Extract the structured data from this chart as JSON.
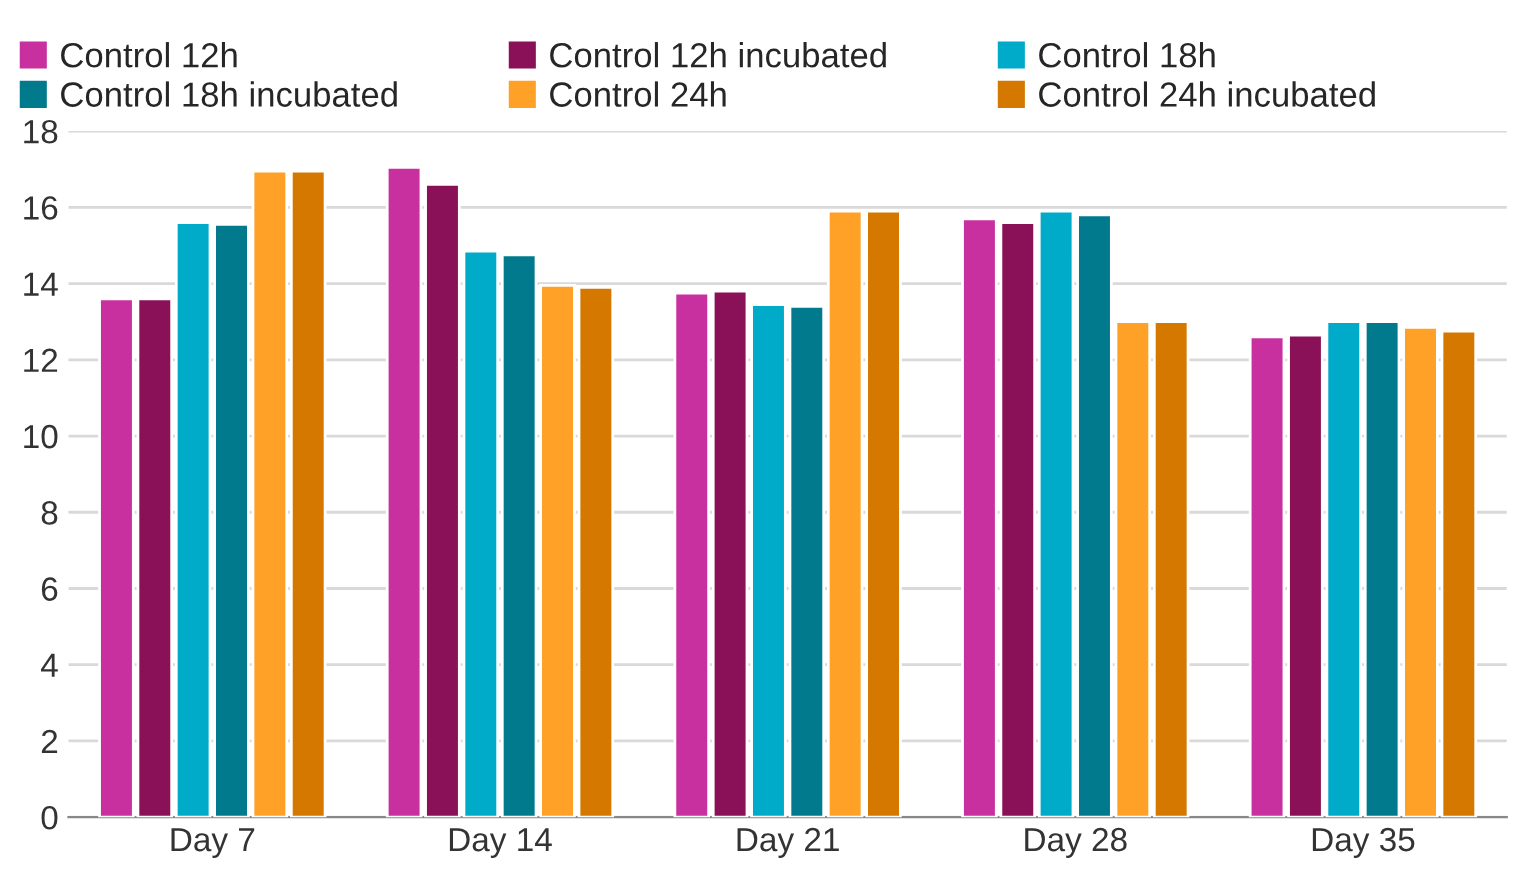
{
  "chart_data": {
    "type": "bar",
    "categories": [
      "Day 7",
      "Day 14",
      "Day 21",
      "Day 28",
      "Day 35"
    ],
    "series": [
      {
        "name": "Control 12h",
        "color": "#c8309f",
        "values": [
          13.6,
          17.05,
          13.75,
          15.7,
          12.6
        ]
      },
      {
        "name": "Control 12h incubated",
        "color": "#8a1058",
        "values": [
          13.6,
          16.6,
          13.8,
          15.6,
          12.65
        ]
      },
      {
        "name": "Control 18h",
        "color": "#00aac9",
        "values": [
          15.6,
          14.85,
          13.45,
          15.9,
          13.0
        ]
      },
      {
        "name": "Control 18h incubated",
        "color": "#007a8c",
        "values": [
          15.55,
          14.75,
          13.4,
          15.8,
          13.0
        ]
      },
      {
        "name": "Control 24h",
        "color": "#ffa126",
        "values": [
          16.95,
          13.95,
          15.9,
          13.0,
          12.85
        ]
      },
      {
        "name": "Control 24h incubated",
        "color": "#d47800",
        "values": [
          16.95,
          13.9,
          15.9,
          13.0,
          12.75
        ]
      }
    ],
    "ylim": [
      0,
      18
    ],
    "yticks": [
      0,
      2,
      4,
      6,
      8,
      10,
      12,
      14,
      16,
      18
    ],
    "grid": "y",
    "legend": "top"
  }
}
